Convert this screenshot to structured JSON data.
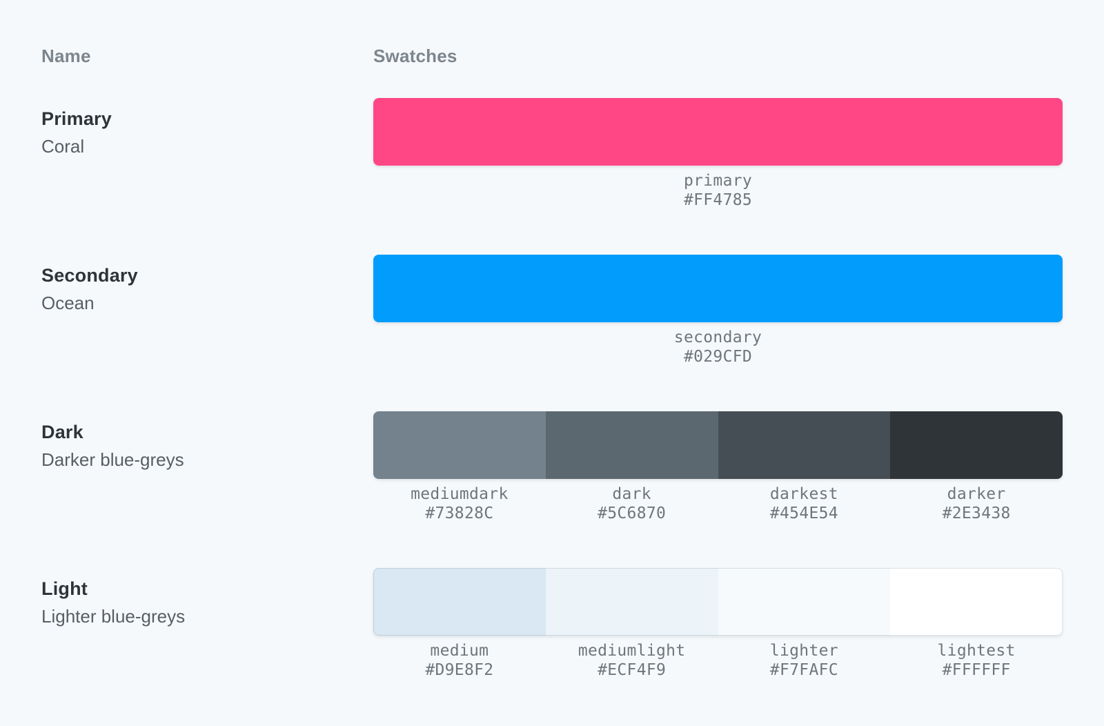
{
  "page": {
    "background": "#F6F9FC"
  },
  "table": {
    "headers": {
      "name": "Name",
      "swatches": "Swatches"
    },
    "rows": [
      {
        "title": "Primary",
        "subtitle": "Coral",
        "swatches": [
          {
            "name": "primary",
            "hex": "#FF4785"
          }
        ]
      },
      {
        "title": "Secondary",
        "subtitle": "Ocean",
        "swatches": [
          {
            "name": "secondary",
            "hex": "#029CFD"
          }
        ]
      },
      {
        "title": "Dark",
        "subtitle": "Darker blue-greys",
        "swatches": [
          {
            "name": "mediumdark",
            "hex": "#73828C"
          },
          {
            "name": "dark",
            "hex": "#5C6870"
          },
          {
            "name": "darkest",
            "hex": "#454E54"
          },
          {
            "name": "darker",
            "hex": "#2E3438"
          }
        ]
      },
      {
        "title": "Light",
        "subtitle": "Lighter blue-greys",
        "swatches": [
          {
            "name": "medium",
            "hex": "#D9E8F2"
          },
          {
            "name": "mediumlight",
            "hex": "#ECF4F9"
          },
          {
            "name": "lighter",
            "hex": "#F7FAFC"
          },
          {
            "name": "lightest",
            "hex": "#FFFFFF"
          }
        ]
      }
    ]
  }
}
